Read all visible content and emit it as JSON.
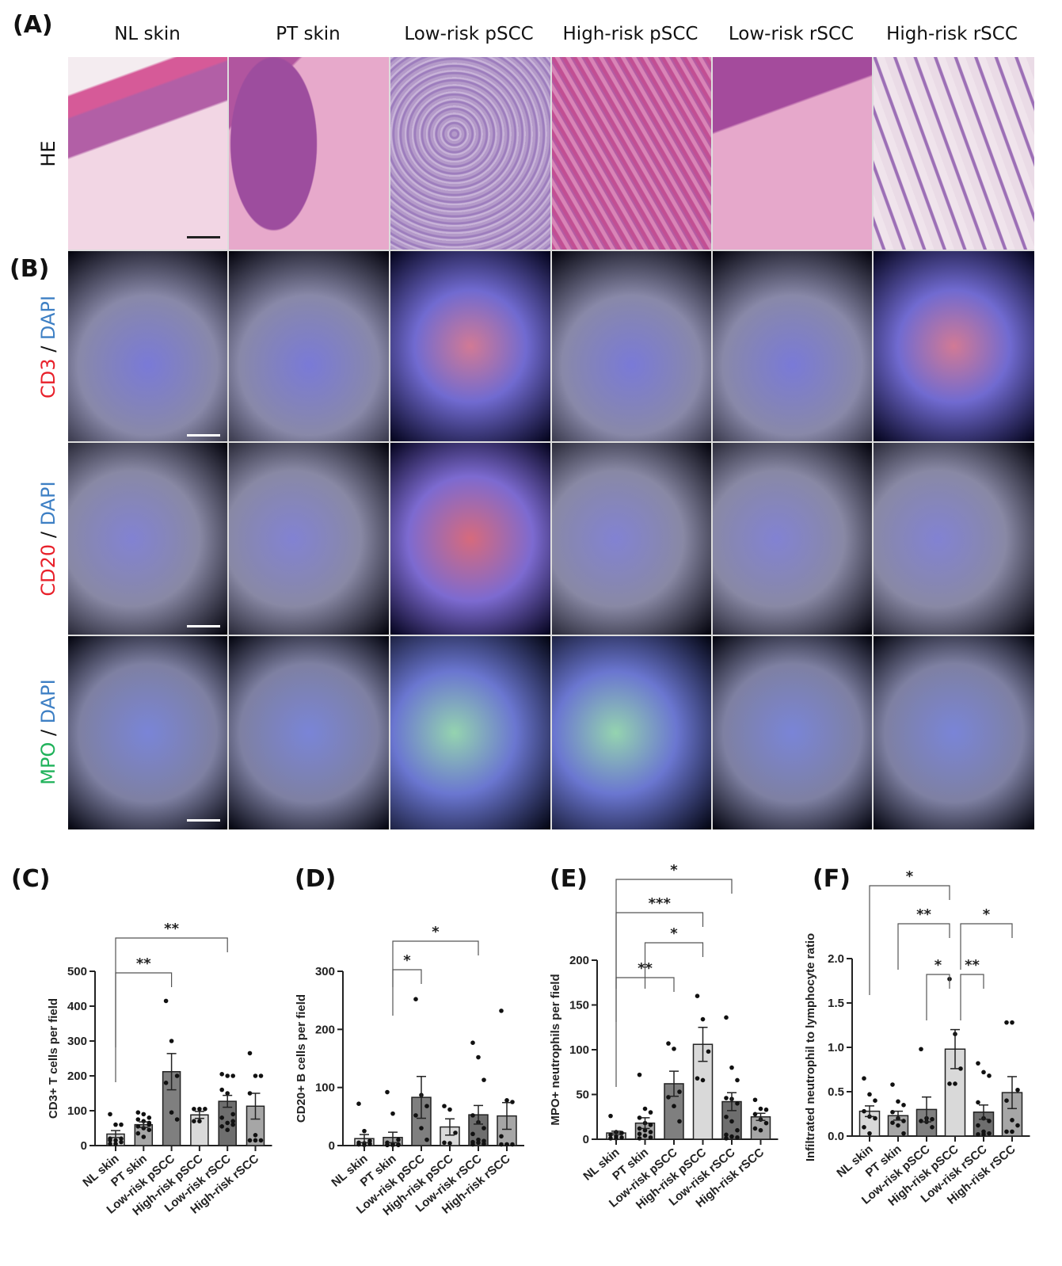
{
  "panels": {
    "A": "(A)",
    "B": "(B)",
    "C": "(C)",
    "D": "(D)",
    "E": "(E)",
    "F": "(F)"
  },
  "columns": [
    "NL skin",
    "PT skin",
    "Low-risk pSCC",
    "High-risk pSCC",
    "Low-risk rSCC",
    "High-risk rSCC"
  ],
  "rows": {
    "he": {
      "label": "HE"
    },
    "cd3": {
      "marker": "CD3",
      "sep": " / ",
      "counter": "DAPI",
      "marker_color": "#e8202a",
      "counter_color": "#3d7fc4"
    },
    "cd20": {
      "marker": "CD20",
      "sep": " / ",
      "counter": "DAPI",
      "marker_color": "#e8202a",
      "counter_color": "#3d7fc4"
    },
    "mpo": {
      "marker": "MPO",
      "sep": " / ",
      "counter": "DAPI",
      "marker_color": "#1fb25a",
      "counter_color": "#3d7fc4"
    }
  },
  "bar_colors": [
    "#d9d9d9",
    "#a6a6a6",
    "#7f7f7f",
    "#d9d9d9",
    "#6e6e6e",
    "#a6a6a6"
  ],
  "chart_data": [
    {
      "panel": "C",
      "type": "bar",
      "title": "",
      "xlabel": "",
      "ylabel": "CD3+ T cells per field",
      "categories": [
        "NL skin",
        "PT skin",
        "Low-risk pSCC",
        "High-risk pSCC",
        "Low-risk rSCC",
        "High-risk rSCC"
      ],
      "values": [
        33,
        60,
        212,
        88,
        127,
        113
      ],
      "sem": [
        10,
        8,
        52,
        10,
        17,
        37
      ],
      "points": [
        [
          90,
          60,
          60,
          20,
          15,
          10,
          5,
          5,
          20,
          15
        ],
        [
          95,
          90,
          80,
          75,
          70,
          65,
          55,
          50,
          45,
          35,
          25,
          60
        ],
        [
          415,
          300,
          200,
          180,
          95,
          75
        ],
        [
          105,
          105,
          105,
          70,
          70
        ],
        [
          205,
          200,
          200,
          160,
          150,
          90,
          80,
          65,
          60,
          55,
          45,
          70
        ],
        [
          265,
          200,
          200,
          150,
          30,
          15,
          15,
          15
        ]
      ],
      "ylim": [
        0,
        500
      ],
      "yticks": [
        0,
        100,
        200,
        300,
        400,
        500
      ],
      "significance": [
        {
          "from": "NL skin",
          "to": "Low-risk pSCC",
          "label": "**"
        },
        {
          "from": "NL skin",
          "to": "Low-risk rSCC",
          "label": "**"
        }
      ],
      "grid": false
    },
    {
      "panel": "D",
      "type": "bar",
      "title": "",
      "xlabel": "",
      "ylabel": "CD20+ B cells per field",
      "categories": [
        "NL skin",
        "PT skin",
        "Low-risk pSCC",
        "High-risk pSCC",
        "Low-risk rSCC",
        "High-risk rSCC"
      ],
      "values": [
        12,
        14,
        83,
        32,
        53,
        51
      ],
      "sem": [
        7,
        9,
        36,
        14,
        16,
        23
      ],
      "points": [
        [
          72,
          25,
          8,
          5,
          4,
          3,
          2,
          1
        ],
        [
          92,
          55,
          10,
          5,
          3,
          2,
          1,
          1,
          1,
          1
        ],
        [
          252,
          87,
          68,
          52,
          30,
          10
        ],
        [
          68,
          62,
          22,
          5,
          4
        ],
        [
          177,
          152,
          113,
          52,
          40,
          30,
          20,
          10,
          8,
          6,
          5,
          3,
          2
        ],
        [
          232,
          78,
          75,
          16,
          2,
          2,
          2,
          2
        ]
      ],
      "ylim": [
        0,
        300
      ],
      "yticks": [
        0,
        100,
        200,
        300
      ],
      "significance": [
        {
          "from": "PT skin",
          "to": "Low-risk pSCC",
          "label": "*"
        },
        {
          "from": "PT skin",
          "to": "Low-risk rSCC",
          "label": "*"
        }
      ],
      "grid": false
    },
    {
      "panel": "E",
      "type": "bar",
      "title": "",
      "xlabel": "",
      "ylabel": "MPO+ neutrophils per field",
      "categories": [
        "NL skin",
        "PT skin",
        "Low-risk pSCC",
        "High-risk pSCC",
        "Low-risk rSCC",
        "High-risk rSCC"
      ],
      "values": [
        7,
        18,
        62,
        106,
        42,
        25
      ],
      "sem": [
        2,
        6,
        14,
        19,
        10,
        4
      ],
      "points": [
        [
          26,
          8,
          7,
          5,
          3,
          2,
          1,
          1
        ],
        [
          72,
          34,
          30,
          24,
          18,
          16,
          12,
          10,
          8,
          6,
          4,
          2,
          1
        ],
        [
          107,
          101,
          53,
          47,
          37,
          20
        ],
        [
          160,
          134,
          98,
          68,
          66
        ],
        [
          136,
          80,
          66,
          46,
          45,
          40,
          25,
          20,
          10,
          5,
          3,
          2,
          1
        ],
        [
          44,
          34,
          33,
          28,
          22,
          18,
          12,
          10
        ]
      ],
      "ylim": [
        0,
        200
      ],
      "yticks": [
        0,
        50,
        100,
        150,
        200
      ],
      "significance": [
        {
          "from": "NL skin",
          "to": "Low-risk pSCC",
          "label": "**"
        },
        {
          "from": "PT skin",
          "to": "High-risk pSCC",
          "label": "*"
        },
        {
          "from": "NL skin",
          "to": "High-risk pSCC",
          "label": "***"
        },
        {
          "from": "NL skin",
          "to": "Low-risk rSCC",
          "label": "*"
        }
      ],
      "grid": false
    },
    {
      "panel": "F",
      "type": "bar",
      "title": "",
      "xlabel": "",
      "ylabel": "Infiltrated neutrophil to lymphocyte ratio",
      "categories": [
        "NL skin",
        "PT skin",
        "Low-risk pSCC",
        "High-risk pSCC",
        "Low-risk rSCC",
        "High-risk rSCC"
      ],
      "values": [
        0.28,
        0.23,
        0.3,
        0.98,
        0.27,
        0.49
      ],
      "sem": [
        0.06,
        0.05,
        0.14,
        0.22,
        0.08,
        0.18
      ],
      "points": [
        [
          0.65,
          0.47,
          0.4,
          0.28,
          0.22,
          0.2,
          0.1,
          0.03
        ],
        [
          0.58,
          0.39,
          0.35,
          0.27,
          0.2,
          0.17,
          0.15,
          0.12,
          0.03
        ],
        [
          0.98,
          0.2,
          0.19,
          0.17,
          0.16,
          0.1
        ],
        [
          1.77,
          1.15,
          0.76,
          0.59,
          0.59
        ],
        [
          0.82,
          0.72,
          0.68,
          0.38,
          0.2,
          0.17,
          0.12,
          0.05,
          0.03,
          0.02,
          0.02
        ],
        [
          1.28,
          1.28,
          0.52,
          0.4,
          0.18,
          0.12,
          0.05,
          0.05
        ]
      ],
      "ylim": [
        0,
        2.0
      ],
      "yticks": [
        "0.0",
        "0.5",
        "1.0",
        "1.5",
        "2.0"
      ],
      "significance": [
        {
          "from": "Low-risk pSCC",
          "to": "High-risk pSCC",
          "label": "*"
        },
        {
          "from": "High-risk pSCC",
          "to": "Low-risk rSCC",
          "label": "**"
        },
        {
          "from": "PT skin",
          "to": "High-risk pSCC",
          "label": "**"
        },
        {
          "from": "High-risk pSCC",
          "to": "High-risk rSCC",
          "label": "*"
        },
        {
          "from": "NL skin",
          "to": "High-risk pSCC",
          "label": "*"
        }
      ],
      "grid": false
    }
  ]
}
